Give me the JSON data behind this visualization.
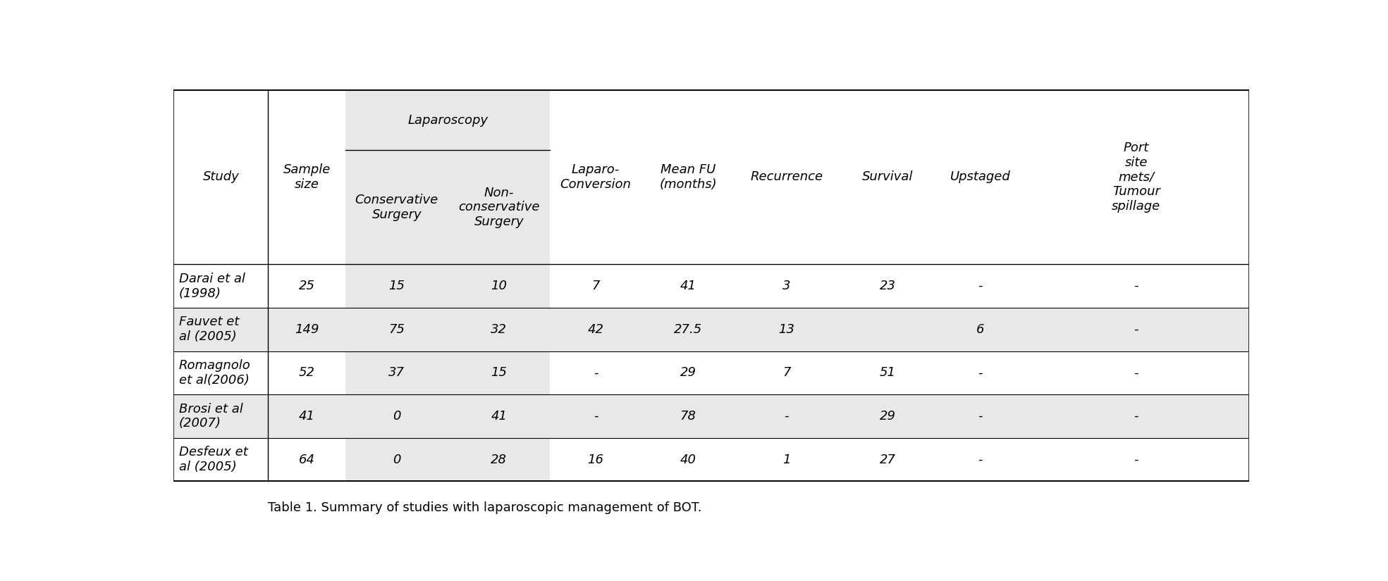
{
  "caption": "Table 1. Summary of studies with laparoscopic management of BOT.",
  "rows": [
    [
      "Darai et al\n(1998)",
      "25",
      "15",
      "10",
      "7",
      "41",
      "3",
      "23",
      "-",
      "-"
    ],
    [
      "Fauvet et\nal (2005)",
      "149",
      "75",
      "32",
      "42",
      "27.5",
      "13",
      "",
      "6",
      "-"
    ],
    [
      "Romagnolo\net al(2006)",
      "52",
      "37",
      "15",
      "-",
      "29",
      "7",
      "51",
      "-",
      "-"
    ],
    [
      "Brosi et al\n(2007)",
      "41",
      "0",
      "41",
      "-",
      "78",
      "-",
      "29",
      "-",
      "-"
    ],
    [
      "Desfeux et\nal (2005)",
      "64",
      "0",
      "28",
      "16",
      "40",
      "1",
      "27",
      "-",
      "-"
    ]
  ],
  "shaded_rows": [
    1,
    3
  ],
  "shaded_color": "#e8e8e8",
  "background_color": "#ffffff",
  "border_color": "#000000",
  "font_size": 13
}
